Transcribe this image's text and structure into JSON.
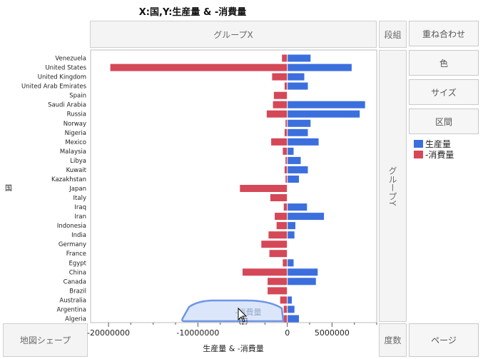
{
  "title": "X:国,Y:生産量 & -消費量",
  "zones": {
    "group_x": "グループX",
    "group_y": "グループY",
    "wrap": "段組",
    "overlay": "重ね合わせ",
    "color": "色",
    "size": "サイズ",
    "interval": "区間",
    "map_shape": "地図シェープ",
    "freq": "度数",
    "page": "ページ"
  },
  "axis": {
    "y_label": "国",
    "x_label": "生産量 & -消費量"
  },
  "legend": [
    {
      "label": "生産量",
      "color": "#3c6fde"
    },
    {
      "label": "-消費量",
      "color": "#d54857"
    }
  ],
  "drag_ghost": {
    "label": "-消費量"
  },
  "chart_data": {
    "type": "bar",
    "orientation": "horizontal",
    "categories": [
      "Venezuela",
      "United States",
      "United Kingdom",
      "United Arab Emirates",
      "Spain",
      "Saudi Arabia",
      "Russia",
      "Norway",
      "Nigeria",
      "Mexico",
      "Malaysia",
      "Libya",
      "Kuwait",
      "Kazakhstan",
      "Japan",
      "Italy",
      "Iraq",
      "Iran",
      "Indonesia",
      "India",
      "Germany",
      "France",
      "Egypt",
      "China",
      "Canada",
      "Brazil",
      "Australia",
      "Argentina",
      "Algeria"
    ],
    "series": [
      {
        "name": "生産量",
        "values": [
          2600000,
          7200000,
          1900000,
          2300000,
          0,
          8700000,
          8100000,
          2600000,
          2300000,
          3500000,
          700000,
          1500000,
          2300000,
          1300000,
          0,
          0,
          2200000,
          4100000,
          900000,
          800000,
          0,
          0,
          700000,
          3400000,
          3200000,
          0,
          500000,
          800000,
          1300000
        ]
      },
      {
        "name": "-消費量",
        "values": [
          -600000,
          -19800000,
          -1700000,
          -300000,
          -1500000,
          -1600000,
          -2300000,
          -200000,
          -300000,
          -1800000,
          -500000,
          -200000,
          -300000,
          -200000,
          -5300000,
          -1900000,
          -400000,
          -1400000,
          -1200000,
          -2100000,
          -2900000,
          -2000000,
          -500000,
          -5000000,
          -2200000,
          -2200000,
          -800000,
          -400000,
          -400000
        ]
      }
    ],
    "x_ticks": [
      -20000000,
      -10000000,
      0,
      5000000
    ],
    "x_tick_labels": [
      "-20000000",
      "-10000000",
      "0",
      "5000000"
    ],
    "xlim": [
      -22000000,
      10000000
    ]
  }
}
